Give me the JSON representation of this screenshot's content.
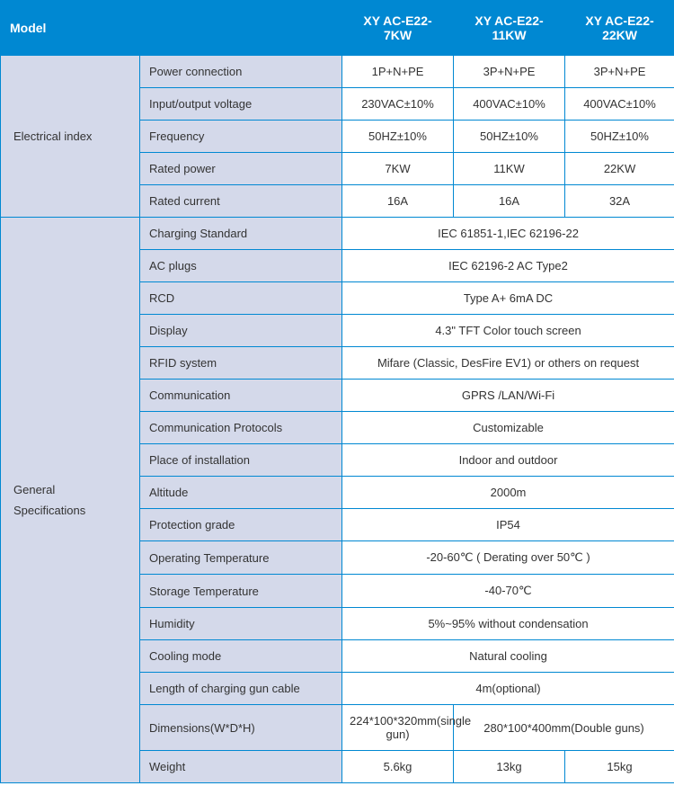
{
  "header": {
    "model_label": "Model",
    "m1": "XY AC-E22-7KW",
    "m2": "XY AC-E22-11KW",
    "m3": "XY AC-E22-22KW"
  },
  "cat1": "Electrical index",
  "cat2": "General\nSpecifications",
  "elec": {
    "power_conn_l": "Power connection",
    "power_conn_1": "1P+N+PE",
    "power_conn_2": "3P+N+PE",
    "power_conn_3": "3P+N+PE",
    "io_volt_l": "Input/output voltage",
    "io_volt_1": "230VAC±10%",
    "io_volt_2": "400VAC±10%",
    "io_volt_3": "400VAC±10%",
    "freq_l": "Frequency",
    "freq_1": "50HZ±10%",
    "freq_2": "50HZ±10%",
    "freq_3": "50HZ±10%",
    "rpower_l": "Rated power",
    "rpower_1": "7KW",
    "rpower_2": "11KW",
    "rpower_3": "22KW",
    "rcurrent_l": "Rated current",
    "rcurrent_1": "16A",
    "rcurrent_2": "16A",
    "rcurrent_3": "32A"
  },
  "gen": {
    "chstd_l": "Charging Standard",
    "chstd_v": "IEC 61851-1,IEC 62196-22",
    "acplug_l": "AC plugs",
    "acplug_v": "IEC 62196-2  AC Type2",
    "rcd_l": "RCD",
    "rcd_v": "Type A+ 6mA DC",
    "disp_l": "Display",
    "disp_v": "4.3\"  TFT Color touch screen",
    "rfid_l": "RFID system",
    "rfid_v": "Mifare (Classic, DesFire EV1) or others on request",
    "comm_l": "Communication",
    "comm_v": "GPRS /LAN/Wi-Fi",
    "cproto_l": "Communication Protocols",
    "cproto_v": "Customizable",
    "place_l": "Place of installation",
    "place_v": "Indoor and outdoor",
    "alt_l": "Altitude",
    "alt_v": "2000m",
    "prot_l": "Protection grade",
    "prot_v": "IP54",
    "optemp_l": "Operating Temperature",
    "optemp_v": "-20-60℃ ( Derating over 50℃ )",
    "sttemp_l": "Storage Temperature",
    "sttemp_v": "-40-70℃",
    "hum_l": "Humidity",
    "hum_v": "5%~95% without condensation",
    "cool_l": "Cooling mode",
    "cool_v": "Natural cooling",
    "cable_l": "Length of charging gun cable",
    "cable_v": "4m(optional)",
    "dim_l": "Dimensions(W*D*H)",
    "dim_1": "224*100*320mm(single gun)",
    "dim_23": "280*100*400mm(Double guns)",
    "wt_l": "Weight",
    "wt_1": "5.6kg",
    "wt_2": "13kg",
    "wt_3": "15kg"
  }
}
